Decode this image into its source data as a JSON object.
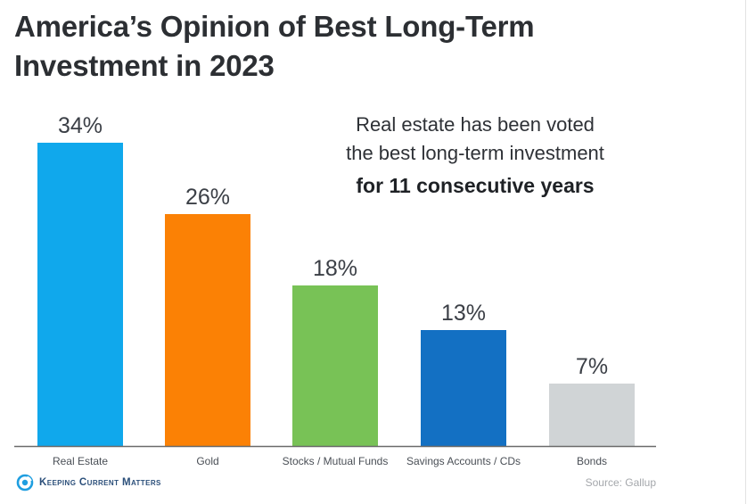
{
  "title": {
    "line1": "America’s Opinion of Best Long-Term",
    "line2": "Investment in 2023"
  },
  "annotation": {
    "line1": "Real estate has been voted",
    "line2": "the best long-term investment",
    "emphasis": "for 11 consecutive years"
  },
  "brand": {
    "name": "Keeping Current Matters",
    "icon": "kcm-logo-icon"
  },
  "source": "Source: Gallup",
  "colors": {
    "real_estate": "#10a8ec",
    "gold": "#fb8105",
    "stocks": "#78c256",
    "savings": "#1370c3",
    "bonds": "#d0d4d6",
    "axis": "#6a6a6a",
    "label_text": "#4a4f56",
    "value_text": "#3b3f46"
  },
  "chart_data": {
    "type": "bar",
    "categories": [
      "Real Estate",
      "Gold",
      "Stocks / Mutual Funds",
      "Savings Accounts / CDs",
      "Bonds"
    ],
    "values": [
      34,
      26,
      18,
      13,
      7
    ],
    "value_labels": [
      "34%",
      "26%",
      "18%",
      "13%",
      "7%"
    ],
    "ylim": [
      0,
      34
    ],
    "grid": false,
    "legend": "none",
    "title": "America’s Opinion of Best Long-Term Investment in 2023",
    "xlabel": "",
    "ylabel": ""
  }
}
